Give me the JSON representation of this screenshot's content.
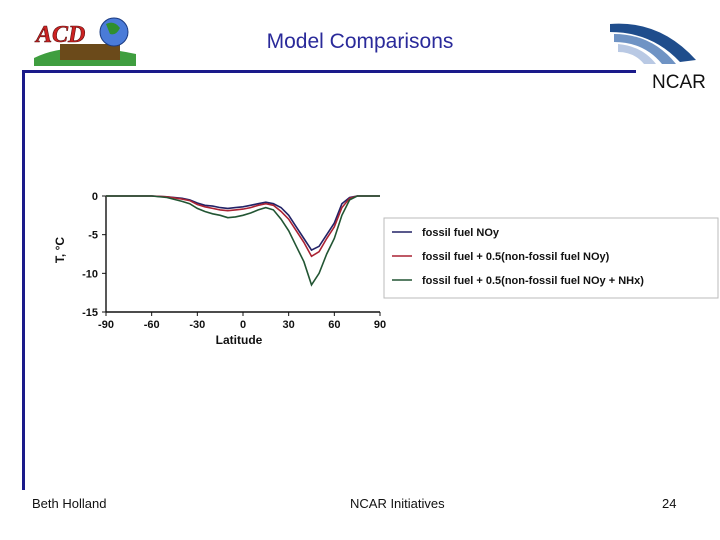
{
  "slide": {
    "title": "Model Comparisons",
    "footer_left": "Beth Holland",
    "footer_center": "NCAR Initiatives",
    "page_number": "24",
    "logo_left_text": "ACD",
    "logo_right_text": "NCAR",
    "colors": {
      "title": "#2a2a9a",
      "rule": "#1a1a8a"
    }
  },
  "chart_data": {
    "type": "line",
    "title": "",
    "xlabel": "Latitude",
    "ylabel": "T, °C",
    "xlim": [
      -90,
      90
    ],
    "ylim": [
      -15,
      0
    ],
    "xticks": [
      -90,
      -60,
      -30,
      0,
      30,
      60,
      90
    ],
    "yticks": [
      0,
      -5,
      -10,
      -15
    ],
    "grid": false,
    "legend_position": "right",
    "x": [
      -90,
      -80,
      -70,
      -60,
      -50,
      -40,
      -35,
      -30,
      -25,
      -20,
      -15,
      -10,
      -5,
      0,
      5,
      10,
      15,
      20,
      25,
      30,
      35,
      40,
      45,
      50,
      55,
      60,
      65,
      70,
      75,
      80,
      85,
      90
    ],
    "series": [
      {
        "name": "fossil fuel NOy",
        "color": "#222266",
        "values": [
          0,
          0,
          0,
          0,
          -0.1,
          -0.3,
          -0.5,
          -0.9,
          -1.2,
          -1.3,
          -1.5,
          -1.6,
          -1.5,
          -1.4,
          -1.2,
          -1.0,
          -0.8,
          -1.0,
          -1.5,
          -2.5,
          -4.0,
          -5.5,
          -7.0,
          -6.5,
          -5.0,
          -3.5,
          -1.0,
          -0.2,
          0,
          0,
          0,
          0
        ]
      },
      {
        "name": "fossil fuel + 0.5(non-fossil fuel NOy)",
        "color": "#aa2233",
        "values": [
          0,
          0,
          0,
          0,
          -0.1,
          -0.4,
          -0.6,
          -1.1,
          -1.4,
          -1.6,
          -1.8,
          -1.9,
          -1.8,
          -1.7,
          -1.5,
          -1.2,
          -1.0,
          -1.2,
          -2.0,
          -3.0,
          -4.5,
          -6.0,
          -7.8,
          -7.2,
          -5.5,
          -4.0,
          -1.5,
          -0.3,
          0,
          0,
          0,
          0
        ]
      },
      {
        "name": "fossil fuel + 0.5(non-fossil fuel NOy + NHx)",
        "color": "#225533",
        "values": [
          0,
          0,
          0,
          0,
          -0.2,
          -0.7,
          -1.0,
          -1.6,
          -2.0,
          -2.3,
          -2.5,
          -2.8,
          -2.7,
          -2.5,
          -2.2,
          -1.8,
          -1.5,
          -1.8,
          -3.0,
          -4.5,
          -6.5,
          -8.5,
          -11.5,
          -10.0,
          -7.5,
          -5.5,
          -2.5,
          -0.5,
          0,
          0,
          0,
          0
        ]
      }
    ]
  }
}
